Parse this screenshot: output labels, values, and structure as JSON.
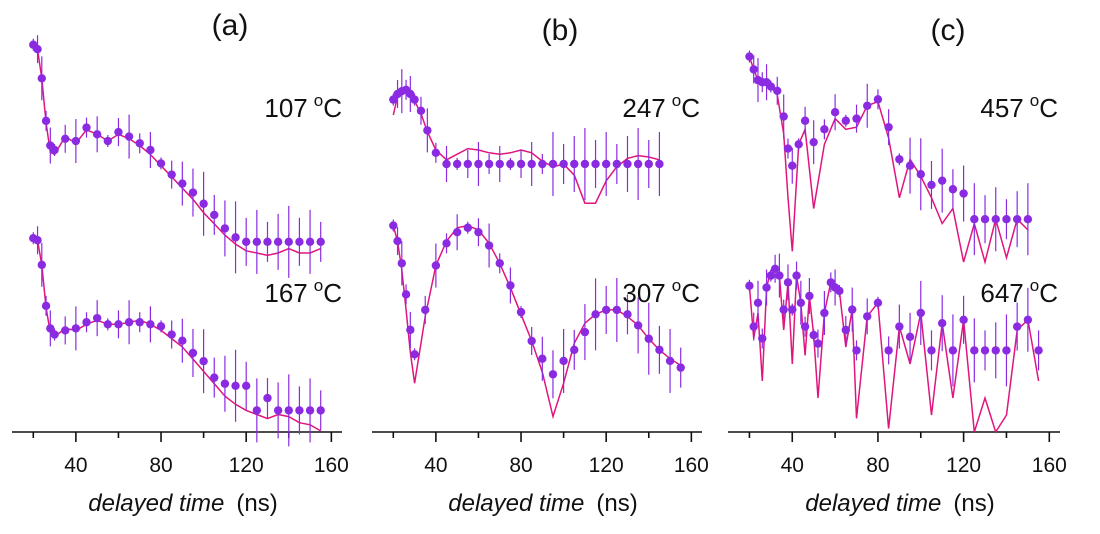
{
  "colors": {
    "points": "#8a2be2",
    "fit": "#e0157d",
    "axis": "#111111"
  },
  "chart_data": [
    {
      "type": "scatter",
      "panel_label": "(a)",
      "xlabel_italic": "delayed time",
      "xlabel_unit": "(ns)",
      "xlim": [
        10,
        165
      ],
      "xticks": [
        "40",
        "80",
        "120",
        "160"
      ],
      "tick_values": [
        40,
        80,
        120,
        160
      ],
      "series": [
        {
          "name": "107 °C",
          "temp": "107",
          "unit": "C",
          "ylim": [
            0,
            1
          ],
          "x": [
            20,
            22,
            24,
            26,
            28,
            30,
            35,
            40,
            45,
            50,
            55,
            60,
            65,
            70,
            75,
            80,
            85,
            90,
            95,
            100,
            105,
            110,
            115,
            120,
            125,
            130,
            135,
            140,
            145,
            150,
            155
          ],
          "y": [
            0.97,
            0.95,
            0.82,
            0.63,
            0.52,
            0.5,
            0.55,
            0.54,
            0.6,
            0.57,
            0.54,
            0.58,
            0.56,
            0.53,
            0.5,
            0.44,
            0.39,
            0.35,
            0.31,
            0.26,
            0.21,
            0.15,
            0.11,
            0.09,
            0.09,
            0.09,
            0.09,
            0.09,
            0.09,
            0.09,
            0.09
          ],
          "fit_y": [
            0.96,
            0.95,
            0.82,
            0.62,
            0.49,
            0.48,
            0.56,
            0.53,
            0.59,
            0.57,
            0.54,
            0.57,
            0.55,
            0.52,
            0.48,
            0.43,
            0.38,
            0.33,
            0.28,
            0.22,
            0.17,
            0.12,
            0.08,
            0.05,
            0.04,
            0.03,
            0.04,
            0.06,
            0.04,
            0.04,
            0.06
          ]
        },
        {
          "name": "167 °C",
          "temp": "167",
          "unit": "C",
          "ylim": [
            0,
            1
          ],
          "x": [
            20,
            22,
            24,
            26,
            28,
            30,
            35,
            40,
            45,
            50,
            55,
            60,
            65,
            70,
            75,
            80,
            85,
            90,
            95,
            100,
            105,
            110,
            115,
            120,
            125,
            130,
            135,
            140,
            145,
            150,
            155
          ],
          "y": [
            0.96,
            0.95,
            0.83,
            0.63,
            0.52,
            0.49,
            0.51,
            0.52,
            0.55,
            0.57,
            0.54,
            0.54,
            0.55,
            0.55,
            0.54,
            0.53,
            0.49,
            0.46,
            0.4,
            0.36,
            0.28,
            0.25,
            0.24,
            0.24,
            0.12,
            0.18,
            0.12,
            0.12,
            0.12,
            0.12,
            0.12
          ],
          "fit_y": [
            0.96,
            0.95,
            0.83,
            0.62,
            0.5,
            0.48,
            0.52,
            0.51,
            0.54,
            0.56,
            0.54,
            0.54,
            0.55,
            0.56,
            0.54,
            0.51,
            0.47,
            0.43,
            0.37,
            0.31,
            0.25,
            0.19,
            0.15,
            0.12,
            0.1,
            0.08,
            0.1,
            0.09,
            0.06,
            0.05,
            0.02
          ]
        }
      ]
    },
    {
      "type": "scatter",
      "panel_label": "(b)",
      "xlabel_italic": "delayed time",
      "xlabel_unit": "(ns)",
      "xlim": [
        10,
        165
      ],
      "xticks": [
        "40",
        "80",
        "120",
        "160"
      ],
      "tick_values": [
        40,
        80,
        120,
        160
      ],
      "series": [
        {
          "name": "247 °C",
          "temp": "247",
          "unit": "C",
          "ylim": [
            0,
            1
          ],
          "x": [
            20,
            22,
            24,
            26,
            28,
            30,
            33,
            36,
            40,
            45,
            50,
            55,
            60,
            65,
            70,
            75,
            80,
            85,
            90,
            95,
            100,
            105,
            110,
            115,
            120,
            125,
            130,
            135,
            140,
            145
          ],
          "y": [
            0.86,
            0.9,
            0.92,
            0.93,
            0.9,
            0.86,
            0.78,
            0.64,
            0.48,
            0.4,
            0.4,
            0.4,
            0.4,
            0.4,
            0.4,
            0.4,
            0.4,
            0.4,
            0.4,
            0.4,
            0.4,
            0.4,
            0.4,
            0.4,
            0.4,
            0.4,
            0.4,
            0.4,
            0.4,
            0.4
          ],
          "fit_y": [
            0.75,
            0.88,
            0.93,
            0.93,
            0.9,
            0.85,
            0.76,
            0.63,
            0.5,
            0.43,
            0.47,
            0.51,
            0.5,
            0.48,
            0.47,
            0.48,
            0.5,
            0.48,
            0.42,
            0.38,
            0.4,
            0.32,
            0.12,
            0.12,
            0.28,
            0.38,
            0.44,
            0.46,
            0.45,
            0.43
          ]
        },
        {
          "name": "307 °C",
          "temp": "307",
          "unit": "C",
          "ylim": [
            0,
            1
          ],
          "x": [
            20,
            22,
            24,
            26,
            28,
            30,
            35,
            40,
            45,
            50,
            55,
            60,
            65,
            70,
            75,
            80,
            85,
            90,
            95,
            100,
            105,
            110,
            115,
            120,
            125,
            130,
            135,
            140,
            145,
            150,
            155
          ],
          "y": [
            0.93,
            0.86,
            0.76,
            0.62,
            0.46,
            0.35,
            0.55,
            0.75,
            0.85,
            0.9,
            0.92,
            0.9,
            0.84,
            0.76,
            0.66,
            0.54,
            0.41,
            0.33,
            0.26,
            0.32,
            0.37,
            0.45,
            0.53,
            0.55,
            0.55,
            0.53,
            0.48,
            0.42,
            0.37,
            0.32,
            0.29
          ],
          "fit_y": [
            0.93,
            0.86,
            0.73,
            0.55,
            0.36,
            0.22,
            0.52,
            0.75,
            0.86,
            0.92,
            0.93,
            0.91,
            0.85,
            0.76,
            0.65,
            0.53,
            0.41,
            0.27,
            0.07,
            0.22,
            0.4,
            0.49,
            0.53,
            0.55,
            0.55,
            0.52,
            0.48,
            0.42,
            0.37,
            0.33,
            0.3
          ]
        }
      ]
    },
    {
      "type": "scatter",
      "panel_label": "(c)",
      "xlabel_italic": "delayed time",
      "xlabel_unit": "(ns)",
      "xlim": [
        10,
        165
      ],
      "xticks": [
        "40",
        "80",
        "120",
        "160"
      ],
      "tick_values": [
        40,
        80,
        120,
        160
      ],
      "series": [
        {
          "name": "457 °C",
          "temp": "457",
          "unit": "C",
          "ylim": [
            0,
            1
          ],
          "x": [
            20,
            22,
            24,
            26,
            28,
            30,
            33,
            36,
            38,
            40,
            43,
            46,
            50,
            55,
            60,
            65,
            70,
            75,
            80,
            85,
            90,
            95,
            100,
            105,
            110,
            115,
            120,
            125,
            130,
            135,
            140,
            145,
            150
          ],
          "y": [
            0.96,
            0.9,
            0.85,
            0.84,
            0.84,
            0.82,
            0.8,
            0.68,
            0.53,
            0.45,
            0.55,
            0.66,
            0.56,
            0.62,
            0.7,
            0.66,
            0.67,
            0.73,
            0.76,
            0.63,
            0.48,
            0.45,
            0.41,
            0.36,
            0.38,
            0.34,
            0.32,
            0.2,
            0.2,
            0.2,
            0.2,
            0.2,
            0.2
          ],
          "fit_y": [
            0.96,
            0.9,
            0.85,
            0.84,
            0.84,
            0.82,
            0.78,
            0.6,
            0.3,
            0.05,
            0.55,
            0.62,
            0.25,
            0.55,
            0.67,
            0.62,
            0.63,
            0.73,
            0.75,
            0.58,
            0.3,
            0.48,
            0.4,
            0.3,
            0.18,
            0.25,
            0.0,
            0.18,
            0.0,
            0.2,
            0.02,
            0.2,
            0.15
          ]
        },
        {
          "name": "647 °C",
          "temp": "647",
          "unit": "C",
          "ylim": [
            0,
            1
          ],
          "x": [
            20,
            22,
            24,
            26,
            28,
            30,
            32,
            34,
            36,
            38,
            40,
            42,
            44,
            46,
            48,
            50,
            52,
            55,
            58,
            60,
            62,
            65,
            68,
            70,
            75,
            80,
            85,
            90,
            95,
            100,
            105,
            110,
            115,
            120,
            125,
            130,
            135,
            140,
            145,
            150,
            155
          ],
          "y": [
            0.86,
            0.62,
            0.76,
            0.55,
            0.85,
            0.92,
            0.96,
            0.92,
            0.72,
            0.88,
            0.72,
            0.92,
            0.76,
            0.62,
            0.8,
            0.57,
            0.52,
            0.7,
            0.88,
            0.85,
            0.83,
            0.6,
            0.72,
            0.48,
            0.68,
            0.76,
            0.48,
            0.62,
            0.56,
            0.7,
            0.48,
            0.64,
            0.48,
            0.66,
            0.48,
            0.48,
            0.48,
            0.48,
            0.62,
            0.66,
            0.48
          ],
          "fit_y": [
            0.86,
            0.55,
            0.7,
            0.3,
            0.85,
            0.95,
            0.96,
            0.92,
            0.6,
            0.88,
            0.4,
            0.92,
            0.76,
            0.45,
            0.8,
            0.57,
            0.2,
            0.7,
            0.88,
            0.85,
            0.83,
            0.5,
            0.72,
            0.08,
            0.68,
            0.76,
            0.02,
            0.62,
            0.4,
            0.7,
            0.1,
            0.64,
            0.2,
            0.66,
            0.0,
            0.2,
            0.0,
            0.1,
            0.6,
            0.66,
            0.3
          ]
        }
      ]
    }
  ]
}
